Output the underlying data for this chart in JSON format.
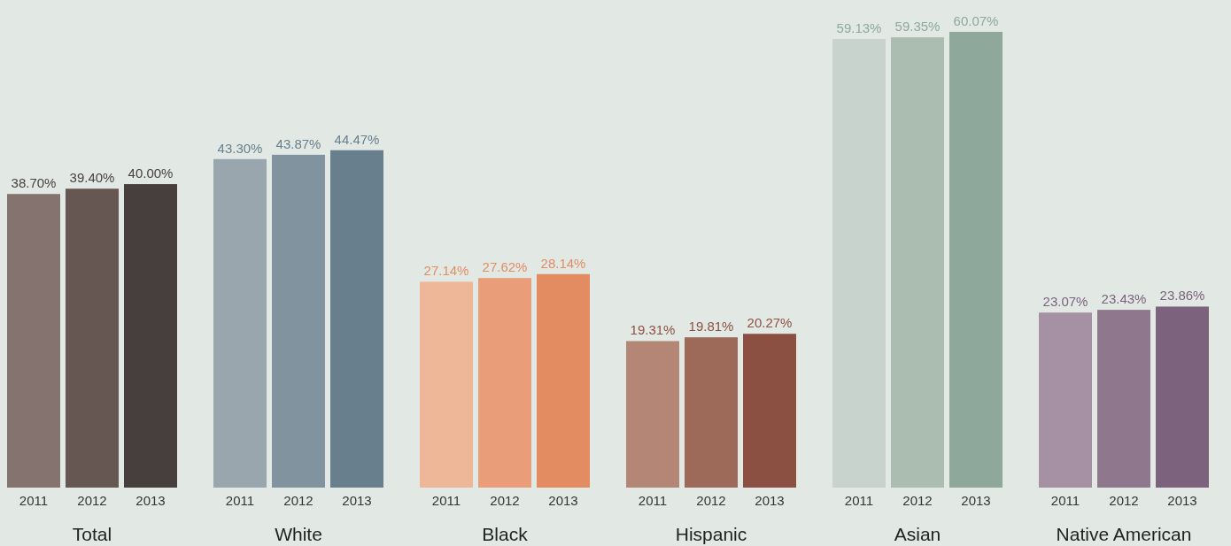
{
  "chart_data": {
    "type": "bar",
    "categories": [
      "Total",
      "White",
      "Black",
      "Hispanic",
      "Asian",
      "Native American"
    ],
    "series": [
      {
        "name": "2011",
        "colors": [
          "#857370",
          "#99a6ae",
          "#eeb797",
          "#b38676",
          "#c9d3ce",
          "#a690a4"
        ],
        "values": [
          38.7,
          43.3,
          27.14,
          19.31,
          59.13,
          23.07
        ],
        "value_labels": [
          "38.70%",
          "43.30%",
          "27.14%",
          "19.31%",
          "59.13%",
          "23.07%"
        ]
      },
      {
        "name": "2012",
        "colors": [
          "#665753",
          "#8293a0",
          "#e99d79",
          "#9d6a59",
          "#abbcb1",
          "#8f778e"
        ],
        "values": [
          39.4,
          43.87,
          27.62,
          19.81,
          59.35,
          23.43
        ],
        "value_labels": [
          "39.40%",
          "43.87%",
          "27.62%",
          "19.81%",
          "59.35%",
          "23.43%"
        ]
      },
      {
        "name": "2013",
        "colors": [
          "#463f3d",
          "#687f8d",
          "#e38c62",
          "#8c5042",
          "#8ea99b",
          "#7c627c"
        ],
        "values": [
          40.0,
          44.47,
          28.14,
          20.27,
          60.07,
          23.86
        ],
        "value_labels": [
          "40.00%",
          "44.47%",
          "28.14%",
          "20.27%",
          "60.07%",
          "23.86%"
        ]
      }
    ]
  }
}
